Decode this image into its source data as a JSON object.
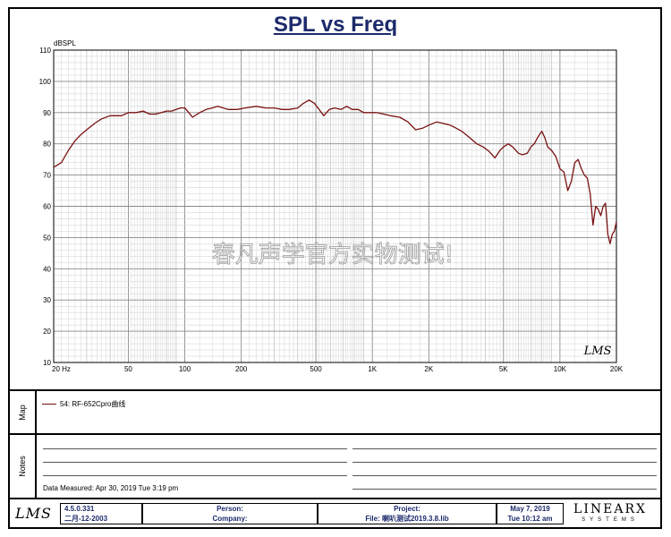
{
  "title": "SPL vs Freq",
  "watermark": "春凡声学官方实物测试!",
  "chart_data": {
    "type": "line",
    "title": "SPL vs Freq",
    "ylabel": "dBSPL",
    "xlabel": "",
    "xscale": "log",
    "xlim": [
      20,
      20000
    ],
    "ylim": [
      10,
      110
    ],
    "grid": true,
    "y_ticks": [
      10,
      20,
      30,
      40,
      50,
      60,
      70,
      80,
      90,
      100,
      110
    ],
    "x_ticks": [
      {
        "value": 20,
        "label": "20 Hz"
      },
      {
        "value": 50,
        "label": "50"
      },
      {
        "value": 100,
        "label": "100"
      },
      {
        "value": 200,
        "label": "200"
      },
      {
        "value": 500,
        "label": "500"
      },
      {
        "value": 1000,
        "label": "1K"
      },
      {
        "value": 2000,
        "label": "2K"
      },
      {
        "value": 5000,
        "label": "5K"
      },
      {
        "value": 10000,
        "label": "10K"
      },
      {
        "value": 20000,
        "label": "20K"
      }
    ],
    "series": [
      {
        "name": "54: RF-652Cpro曲线",
        "color": "#7a1010",
        "x": [
          20,
          22,
          24,
          26,
          28,
          30,
          33,
          36,
          40,
          43,
          46,
          50,
          55,
          60,
          65,
          70,
          75,
          80,
          85,
          90,
          95,
          100,
          105,
          110,
          120,
          130,
          140,
          150,
          170,
          190,
          210,
          240,
          270,
          300,
          330,
          360,
          400,
          430,
          460,
          490,
          520,
          550,
          590,
          630,
          680,
          730,
          780,
          840,
          900,
          960,
          1050,
          1150,
          1250,
          1400,
          1550,
          1700,
          1850,
          2000,
          2200,
          2400,
          2600,
          2800,
          3000,
          3300,
          3600,
          3900,
          4200,
          4500,
          4800,
          5000,
          5300,
          5600,
          6000,
          6300,
          6700,
          7000,
          7300,
          7600,
          8000,
          8300,
          8600,
          9000,
          9500,
          10000,
          10500,
          11000,
          11500,
          12000,
          12500,
          13000,
          13500,
          14000,
          14500,
          15000,
          15500,
          16000,
          16500,
          17000,
          17500,
          18000,
          18500,
          19000,
          19500,
          20000
        ],
        "y": [
          72.5,
          74,
          78,
          81,
          83,
          84.5,
          86.5,
          88,
          89,
          89,
          89,
          90,
          90,
          90.5,
          89.5,
          89.5,
          90,
          90.5,
          90.5,
          91,
          91.5,
          91.5,
          90,
          88.5,
          90,
          91,
          91.5,
          92,
          91,
          91,
          91.5,
          92,
          91.5,
          91.5,
          91,
          91,
          91.5,
          93,
          94,
          93,
          91,
          89,
          91,
          91.5,
          91,
          92,
          91,
          91,
          90,
          90,
          90,
          89.5,
          89,
          88.5,
          87,
          84.5,
          85,
          86,
          87,
          86.5,
          86,
          85,
          84,
          82,
          80,
          79,
          77.5,
          75.5,
          78,
          79,
          80,
          79,
          77,
          76.5,
          77,
          79,
          80,
          82,
          84,
          82,
          79,
          78,
          76,
          72,
          71,
          65,
          68,
          74,
          75,
          72,
          70,
          69,
          64,
          54,
          60,
          59,
          57,
          60,
          61,
          51,
          48,
          51,
          52,
          55
        ]
      }
    ]
  },
  "map": {
    "label": "Map",
    "legend": "54: RF-652Cpro曲线"
  },
  "notes": {
    "label": "Notes",
    "measured": "Data Measured: Apr 30, 2019  Tue  3:19 pm"
  },
  "footer": {
    "logo": "LMS",
    "version": "4.5.0.331",
    "version_date": "二月-12-2003",
    "person_label": "Person:",
    "company_label": "Company:",
    "project_label": "Project:",
    "file_label": "File: 喇叭测试2019.3.8.lib",
    "date_line": "May  7, 2019",
    "time_line": "Tue 10:12 am",
    "brand_top": "LINEARX",
    "brand_bottom": "SYSTEMS"
  },
  "plot_logo": "LMS"
}
